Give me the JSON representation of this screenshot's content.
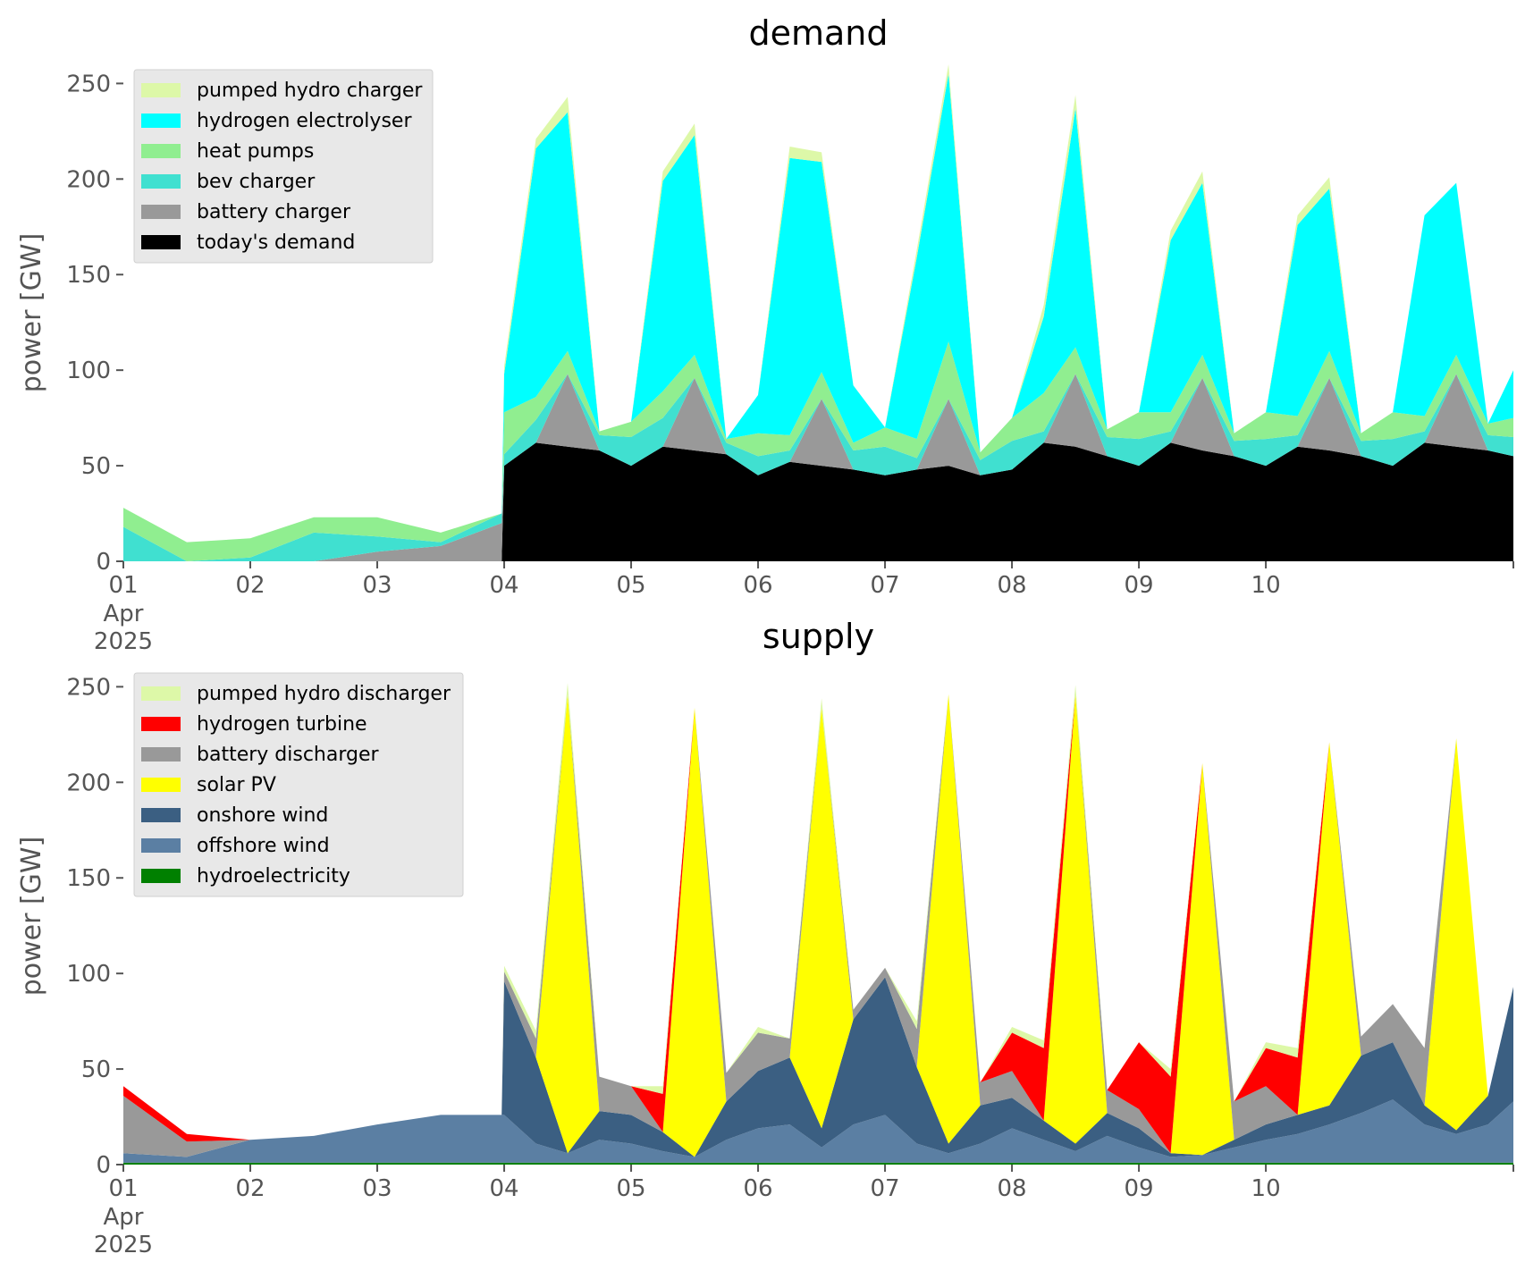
{
  "chart_data": [
    {
      "type": "area",
      "stacked": true,
      "title": "demand",
      "ylabel": "power [GW]",
      "xlabel": "",
      "ylim": [
        0,
        260
      ],
      "x": [
        0.0,
        0.5,
        1.0,
        1.5,
        2.0,
        2.5,
        2.98,
        3.0,
        3.25,
        3.5,
        3.75,
        4.0,
        4.25,
        4.5,
        4.75,
        5.0,
        5.25,
        5.5,
        5.75,
        6.0,
        6.25,
        6.5,
        6.75,
        7.0,
        7.25,
        7.5,
        7.75,
        8.0,
        8.25,
        8.5,
        8.75,
        9.0,
        9.25,
        9.5,
        9.75,
        10.0,
        10.25,
        10.5,
        10.75,
        10.95
      ],
      "x_ticks": [
        {
          "day": 0,
          "label": "01",
          "sub": [
            "Apr",
            "2025"
          ]
        },
        {
          "day": 1,
          "label": "02"
        },
        {
          "day": 2,
          "label": "03"
        },
        {
          "day": 3,
          "label": "04"
        },
        {
          "day": 4,
          "label": "05"
        },
        {
          "day": 5,
          "label": "06"
        },
        {
          "day": 6,
          "label": "07"
        },
        {
          "day": 7,
          "label": "08"
        },
        {
          "day": 8,
          "label": "09"
        },
        {
          "day": 9,
          "label": "10"
        }
      ],
      "x_tick_note": "x values are days since the first tick (01 Apr 2025)",
      "y_ticks": [
        0,
        50,
        100,
        150,
        200,
        250
      ],
      "legend": {
        "placement": "top-left",
        "entries": [
          "pumped hydro charger",
          "hydrogen electrolyser",
          "heat pumps",
          "bev charger",
          "battery charger",
          "today's demand"
        ]
      },
      "series": [
        {
          "name": "today's demand",
          "color": "#000000",
          "values": [
            0,
            0,
            0,
            0,
            0,
            0,
            0,
            50,
            62,
            60,
            58,
            50,
            60,
            58,
            56,
            45,
            52,
            50,
            48,
            45,
            48,
            50,
            45,
            48,
            62,
            60,
            55,
            50,
            62,
            58,
            55,
            50,
            60,
            58,
            55,
            50,
            62,
            60,
            58,
            55
          ]
        },
        {
          "name": "battery charger",
          "color": "#999999",
          "values": [
            0,
            0,
            0,
            0,
            5,
            8,
            20,
            0,
            0,
            38,
            0,
            0,
            0,
            38,
            0,
            0,
            0,
            35,
            0,
            0,
            0,
            35,
            0,
            0,
            0,
            38,
            0,
            0,
            0,
            38,
            0,
            0,
            0,
            38,
            0,
            0,
            0,
            38,
            0,
            0
          ]
        },
        {
          "name": "bev charger",
          "color": "#40e0d0",
          "values": [
            18,
            0,
            2,
            15,
            8,
            2,
            5,
            6,
            12,
            0,
            8,
            15,
            15,
            0,
            6,
            10,
            6,
            0,
            10,
            15,
            6,
            0,
            8,
            15,
            6,
            0,
            10,
            14,
            6,
            0,
            8,
            14,
            6,
            0,
            8,
            14,
            6,
            0,
            8,
            10
          ]
        },
        {
          "name": "heat pumps",
          "color": "#90ee90",
          "values": [
            10,
            10,
            10,
            8,
            10,
            5,
            0,
            22,
            12,
            12,
            2,
            8,
            14,
            12,
            2,
            12,
            8,
            14,
            4,
            10,
            10,
            30,
            4,
            12,
            20,
            14,
            4,
            14,
            10,
            12,
            4,
            14,
            10,
            14,
            4,
            14,
            8,
            10,
            6,
            10
          ]
        },
        {
          "name": "hydrogen electrolyser",
          "color": "#00ffff",
          "values": [
            0,
            0,
            0,
            0,
            0,
            0,
            0,
            20,
            130,
            125,
            0,
            0,
            110,
            115,
            0,
            20,
            145,
            110,
            30,
            0,
            95,
            140,
            0,
            0,
            40,
            125,
            0,
            0,
            90,
            90,
            0,
            0,
            100,
            85,
            0,
            0,
            105,
            90,
            0,
            25
          ]
        },
        {
          "name": "pumped hydro charger",
          "color": "#ddf8a8",
          "values": [
            0,
            0,
            0,
            0,
            0,
            0,
            0,
            4,
            5,
            8,
            0,
            0,
            5,
            6,
            0,
            0,
            6,
            5,
            0,
            0,
            4,
            5,
            0,
            0,
            6,
            7,
            0,
            0,
            5,
            6,
            0,
            0,
            5,
            6,
            0,
            0,
            0,
            0,
            0,
            0
          ]
        }
      ]
    },
    {
      "type": "area",
      "stacked": true,
      "title": "supply",
      "ylabel": "power [GW]",
      "xlabel": "",
      "ylim": [
        0,
        260
      ],
      "x": [
        0.0,
        0.5,
        1.0,
        1.5,
        2.0,
        2.5,
        2.98,
        3.0,
        3.25,
        3.5,
        3.75,
        4.0,
        4.25,
        4.5,
        4.75,
        5.0,
        5.25,
        5.5,
        5.75,
        6.0,
        6.25,
        6.5,
        6.75,
        7.0,
        7.25,
        7.5,
        7.75,
        8.0,
        8.25,
        8.5,
        8.75,
        9.0,
        9.25,
        9.5,
        9.75,
        10.0,
        10.25,
        10.5,
        10.75,
        10.95
      ],
      "x_ticks": [
        {
          "day": 0,
          "label": "01",
          "sub": [
            "Apr",
            "2025"
          ]
        },
        {
          "day": 1,
          "label": "02"
        },
        {
          "day": 2,
          "label": "03"
        },
        {
          "day": 3,
          "label": "04"
        },
        {
          "day": 4,
          "label": "05"
        },
        {
          "day": 5,
          "label": "06"
        },
        {
          "day": 6,
          "label": "07"
        },
        {
          "day": 7,
          "label": "08"
        },
        {
          "day": 8,
          "label": "09"
        },
        {
          "day": 9,
          "label": "10"
        }
      ],
      "y_ticks": [
        0,
        50,
        100,
        150,
        200,
        250
      ],
      "legend": {
        "placement": "top-left",
        "entries": [
          "pumped hydro discharger",
          "hydrogen turbine",
          "battery discharger",
          "solar PV",
          "onshore wind",
          "offshore wind",
          "hydroelectricity"
        ]
      },
      "series": [
        {
          "name": "hydroelectricity",
          "color": "#008000",
          "values": [
            1,
            1,
            1,
            1,
            1,
            1,
            1,
            1,
            1,
            1,
            1,
            1,
            1,
            1,
            1,
            1,
            1,
            1,
            1,
            1,
            1,
            1,
            1,
            1,
            1,
            1,
            1,
            1,
            1,
            1,
            1,
            1,
            1,
            1,
            1,
            1,
            1,
            1,
            1,
            1
          ]
        },
        {
          "name": "offshore wind",
          "color": "#5b7fa3",
          "values": [
            5,
            3,
            12,
            14,
            20,
            25,
            25,
            25,
            10,
            5,
            12,
            10,
            6,
            3,
            12,
            18,
            20,
            8,
            20,
            25,
            10,
            5,
            10,
            18,
            12,
            6,
            14,
            8,
            3,
            4,
            8,
            12,
            15,
            20,
            26,
            33,
            20,
            15,
            20,
            32
          ]
        },
        {
          "name": "onshore wind",
          "color": "#3b5f82",
          "values": [
            0,
            0,
            0,
            0,
            0,
            0,
            0,
            70,
            45,
            0,
            15,
            15,
            10,
            0,
            20,
            30,
            35,
            10,
            55,
            72,
            40,
            5,
            20,
            16,
            10,
            4,
            12,
            10,
            2,
            0,
            4,
            8,
            10,
            10,
            30,
            30,
            10,
            2,
            15,
            60
          ]
        },
        {
          "name": "solar PV",
          "color": "#ffff00",
          "values": [
            0,
            0,
            0,
            0,
            0,
            0,
            0,
            0,
            0,
            240,
            0,
            0,
            0,
            235,
            0,
            0,
            0,
            220,
            0,
            0,
            0,
            235,
            0,
            0,
            0,
            235,
            0,
            0,
            0,
            205,
            0,
            0,
            0,
            190,
            0,
            0,
            0,
            205,
            0,
            0
          ]
        },
        {
          "name": "battery discharger",
          "color": "#999999",
          "values": [
            30,
            8,
            0,
            0,
            0,
            0,
            0,
            5,
            10,
            0,
            18,
            15,
            0,
            0,
            15,
            20,
            10,
            0,
            5,
            5,
            20,
            0,
            12,
            14,
            0,
            0,
            12,
            10,
            0,
            0,
            20,
            20,
            0,
            0,
            10,
            20,
            30,
            0,
            0,
            0
          ]
        },
        {
          "name": "hydrogen turbine",
          "color": "#ff0000",
          "values": [
            5,
            4,
            0,
            0,
            0,
            0,
            0,
            0,
            0,
            0,
            0,
            0,
            20,
            0,
            0,
            0,
            0,
            0,
            0,
            0,
            0,
            0,
            0,
            20,
            38,
            0,
            0,
            35,
            40,
            0,
            0,
            20,
            30,
            0,
            0,
            0,
            0,
            0,
            0,
            0
          ]
        },
        {
          "name": "pumped hydro discharger",
          "color": "#ddf8a8",
          "values": [
            0,
            0,
            0,
            0,
            0,
            0,
            0,
            3,
            4,
            6,
            0,
            0,
            4,
            0,
            0,
            3,
            0,
            5,
            0,
            0,
            4,
            0,
            0,
            3,
            4,
            5,
            0,
            0,
            4,
            0,
            0,
            3,
            5,
            0,
            0,
            0,
            0,
            0,
            0,
            0
          ]
        }
      ]
    }
  ]
}
